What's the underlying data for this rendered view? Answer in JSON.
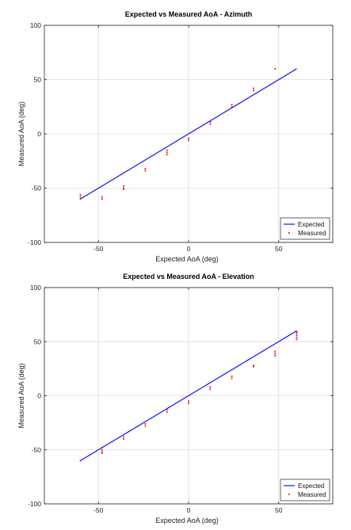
{
  "chart_data": [
    {
      "type": "scatter",
      "title": "Expected vs Measured AoA - Azimuth",
      "xlabel": "Expected AoA (deg)",
      "ylabel": "Measured AoA (deg)",
      "xlim": [
        -80,
        80
      ],
      "ylim": [
        -100,
        100
      ],
      "xticks": [
        -50,
        0,
        50
      ],
      "yticks": [
        -100,
        -50,
        0,
        50,
        100
      ],
      "grid": true,
      "legend": "bottom-right",
      "series": [
        {
          "name": "Expected",
          "kind": "line",
          "color": "#2222ee",
          "x": [
            -60,
            60
          ],
          "y": [
            -60,
            60
          ]
        },
        {
          "name": "Measured",
          "kind": "scatter",
          "color": "#ee1111",
          "x": [
            -60,
            -60,
            -60,
            -48,
            -48,
            -36,
            -36,
            -36,
            -24,
            -24,
            -12,
            -12,
            -12,
            0,
            0,
            12,
            12,
            24,
            24,
            36,
            36,
            48
          ],
          "y": [
            -56,
            -58,
            -60,
            -58,
            -60,
            -48,
            -50,
            -51,
            -32,
            -34,
            -15,
            -17,
            -19,
            -4,
            -6,
            9,
            11,
            25,
            27,
            40,
            42,
            60
          ]
        }
      ]
    },
    {
      "type": "scatter",
      "title": "Expected vs Measured AoA - Elevation",
      "xlabel": "Expected AoA (deg)",
      "ylabel": "Measured AoA (deg)",
      "xlim": [
        -80,
        80
      ],
      "ylim": [
        -100,
        100
      ],
      "xticks": [
        -50,
        0,
        50
      ],
      "yticks": [
        -100,
        -50,
        0,
        50,
        100
      ],
      "grid": true,
      "legend": "bottom-right",
      "series": [
        {
          "name": "Expected",
          "kind": "line",
          "color": "#2222ee",
          "x": [
            -60,
            60
          ],
          "y": [
            -60,
            60
          ]
        },
        {
          "name": "Measured",
          "kind": "scatter",
          "color": "#ee1111",
          "x": [
            -60,
            -48,
            -48,
            -48,
            -48,
            -36,
            -36,
            -24,
            -24,
            -12,
            -12,
            0,
            0,
            12,
            12,
            24,
            24,
            36,
            36,
            48,
            48,
            48,
            60,
            60,
            60,
            60,
            60
          ],
          "y": [
            -60,
            -48,
            -50,
            -52,
            -53,
            -38,
            -40,
            -26,
            -28,
            -13,
            -15,
            -5,
            -7,
            6,
            8,
            16,
            18,
            27,
            28,
            37,
            39,
            41,
            52,
            54,
            56,
            58,
            59
          ]
        }
      ]
    }
  ]
}
